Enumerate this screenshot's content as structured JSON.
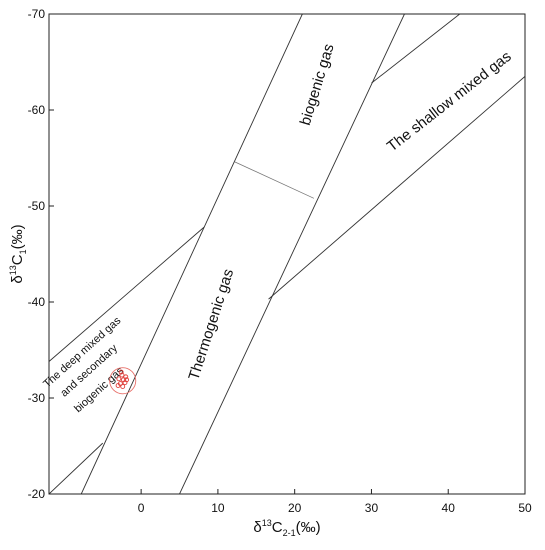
{
  "chart_data": {
    "type": "scatter",
    "xlabel": {
      "main": "δ",
      "sup": "13",
      "mid": "C",
      "sub": "2-1",
      "tail": "(‰)"
    },
    "ylabel": {
      "main": "δ",
      "sup": "13",
      "mid": "C",
      "sub": "1",
      "tail": "(‰)"
    },
    "xlim": [
      -12,
      50
    ],
    "ylim": [
      -20,
      -70
    ],
    "xticks": [
      0,
      10,
      20,
      30,
      40,
      50
    ],
    "yticks": [
      -20,
      -30,
      -40,
      -50,
      -60,
      -70
    ],
    "grid": false,
    "boundaries": [
      {
        "name": "boundary-deep-upper",
        "x": [
          -12,
          8.2
        ],
        "y": [
          -33.8,
          -47.8
        ]
      },
      {
        "name": "boundary-deep-lower",
        "x": [
          -12,
          -5.0
        ],
        "y": [
          -20.0,
          -25.3
        ]
      },
      {
        "name": "boundary-thermo-left",
        "x": [
          -7.8,
          21.0
        ],
        "y": [
          -20.0,
          -70.0
        ]
      },
      {
        "name": "boundary-thermo-right",
        "x": [
          5.0,
          34.3
        ],
        "y": [
          -20.0,
          -70.0
        ]
      },
      {
        "name": "boundary-biogenic-base",
        "x": [
          12.2,
          22.5
        ],
        "y": [
          -54.6,
          -50.8
        ]
      },
      {
        "name": "boundary-shallow-upper",
        "x": [
          30.0,
          41.5
        ],
        "y": [
          -62.8,
          -70.0
        ]
      },
      {
        "name": "boundary-shallow-lower",
        "x": [
          16.6,
          50.0
        ],
        "y": [
          -40.3,
          -63.5
        ]
      }
    ],
    "regions": [
      {
        "label": "biogenic gas",
        "x": 23.5,
        "y": -62.5,
        "angle": -73
      },
      {
        "label": "The shallow mixed gas",
        "x": 40.5,
        "y": -60.5,
        "angle": -38
      },
      {
        "label": "Thermogenic gas",
        "x": 9.7,
        "y": -37.5,
        "angle": -72
      },
      {
        "label": "The deep mixed gas",
        "x": -7.4,
        "y": -34.5,
        "angle": -42,
        "small": true
      },
      {
        "label": "and secondary",
        "x": -6.5,
        "y": -32.6,
        "angle": -42,
        "small": true
      },
      {
        "label": "biogenic gas",
        "x": -5.2,
        "y": -30.6,
        "angle": -42,
        "small": true
      }
    ],
    "points": [
      {
        "x": -2.7,
        "y": -31.5
      },
      {
        "x": -2.3,
        "y": -31.9
      },
      {
        "x": -2.0,
        "y": -32.2
      },
      {
        "x": -2.9,
        "y": -32.0
      },
      {
        "x": -2.5,
        "y": -32.4
      },
      {
        "x": -2.1,
        "y": -31.6
      },
      {
        "x": -3.0,
        "y": -31.3
      },
      {
        "x": -2.4,
        "y": -31.2
      },
      {
        "x": -2.6,
        "y": -32.7
      },
      {
        "x": -1.9,
        "y": -31.9
      }
    ],
    "point_color": "#e0403c",
    "highlight": {
      "x": -2.4,
      "y": -31.8,
      "r_data": 1.7,
      "color": "#e8706a"
    }
  }
}
